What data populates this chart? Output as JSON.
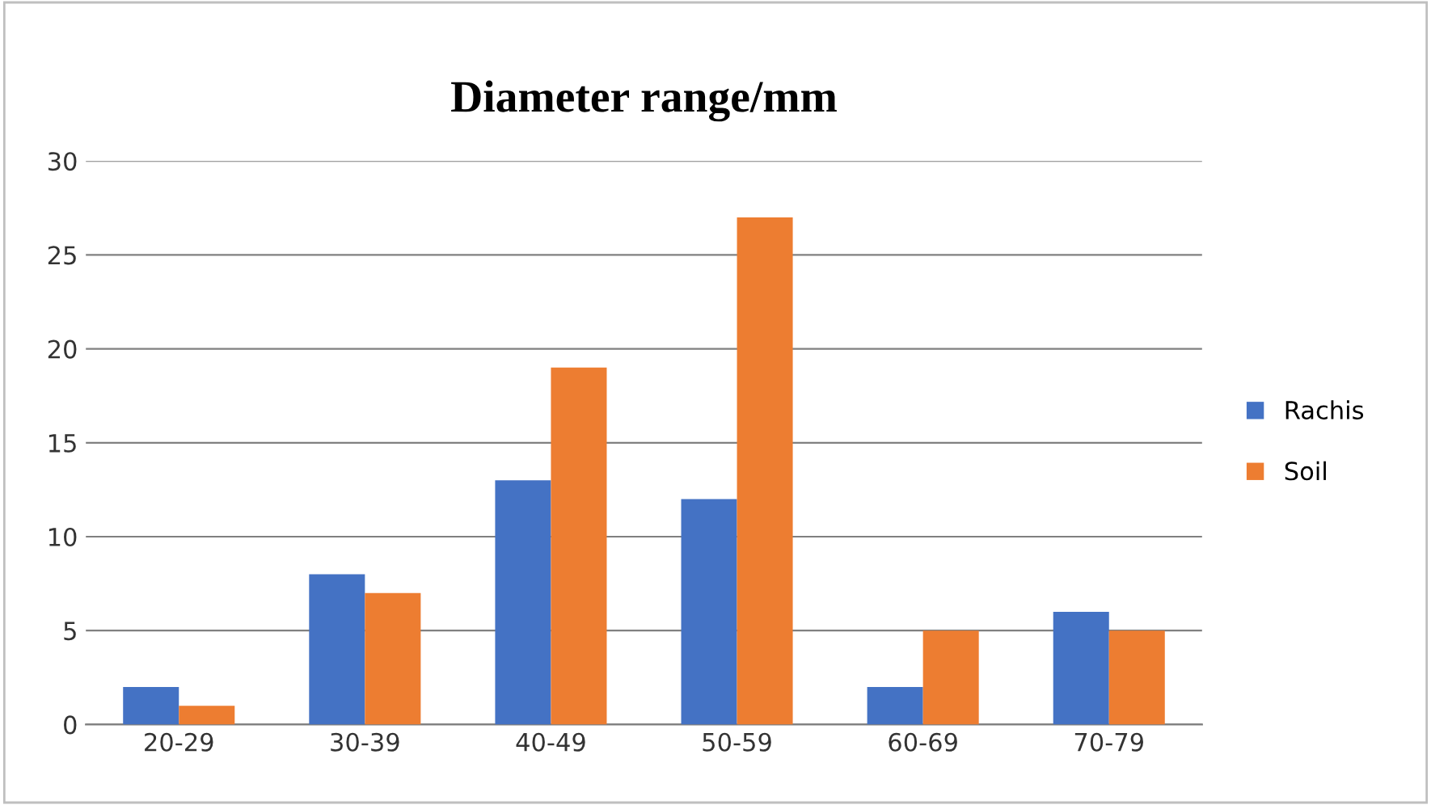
{
  "chart_data": {
    "type": "bar",
    "title": "Diameter range/mm",
    "categories": [
      "20-29",
      "30-39",
      "40-49",
      "50-59",
      "60-69",
      "70-79"
    ],
    "series": [
      {
        "name": "Rachis",
        "color": "#4472c4",
        "values": [
          2,
          8,
          13,
          12,
          2,
          6
        ]
      },
      {
        "name": "Soil",
        "color": "#ed7d31",
        "values": [
          1,
          7,
          19,
          27,
          5,
          5
        ]
      }
    ],
    "ylim": [
      0,
      30
    ],
    "yticks": [
      0,
      5,
      10,
      15,
      20,
      25,
      30
    ],
    "grid": "y",
    "legend": "right"
  }
}
